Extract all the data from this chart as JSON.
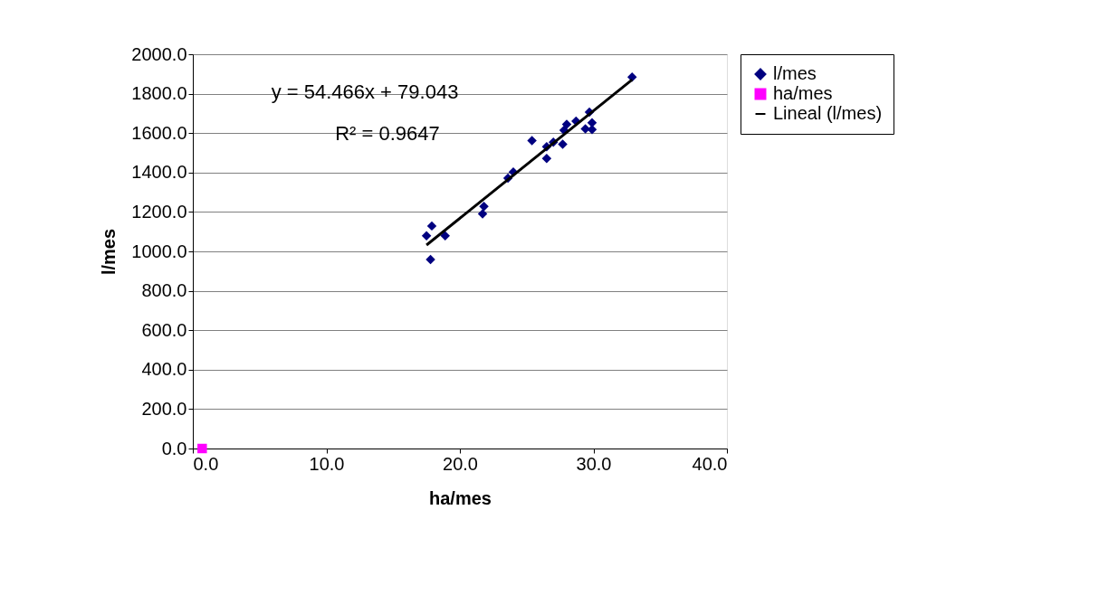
{
  "chart_data": {
    "type": "scatter",
    "xlabel": "ha/mes",
    "ylabel": "l/mes",
    "xlim": [
      0,
      40
    ],
    "ylim": [
      0,
      2000
    ],
    "xticks": [
      {
        "value": 0,
        "label": "0.0"
      },
      {
        "value": 10,
        "label": "10.0"
      },
      {
        "value": 20,
        "label": "20.0"
      },
      {
        "value": 30,
        "label": "30.0"
      },
      {
        "value": 40,
        "label": "40.0"
      }
    ],
    "yticks": [
      {
        "value": 0,
        "label": "0.0"
      },
      {
        "value": 200,
        "label": "200.0"
      },
      {
        "value": 400,
        "label": "400.0"
      },
      {
        "value": 600,
        "label": "600.0"
      },
      {
        "value": 800,
        "label": "800.0"
      },
      {
        "value": 1000,
        "label": "1000.0"
      },
      {
        "value": 1200,
        "label": "1200.0"
      },
      {
        "value": 1400,
        "label": "1400.0"
      },
      {
        "value": 1600,
        "label": "1600.0"
      },
      {
        "value": 1800,
        "label": "1800.0"
      },
      {
        "value": 2000,
        "label": "2000.0"
      }
    ],
    "grid": "y",
    "legend": "right",
    "annotations": [
      "y = 54.466x + 79.043",
      "R² = 0.9647"
    ],
    "series": [
      {
        "name": "l/mes",
        "marker": "diamond",
        "color": "#000080",
        "x": [
          17.5,
          17.9,
          17.8,
          18.9,
          21.8,
          21.7,
          23.6,
          24.0,
          25.4,
          26.5,
          26.5,
          27.0,
          27.7,
          27.8,
          28.0,
          28.7,
          29.4,
          29.7,
          29.9,
          29.9,
          32.9
        ],
        "values": [
          1079,
          1129,
          959,
          1079,
          1228,
          1190,
          1372,
          1402,
          1562,
          1471,
          1531,
          1554,
          1544,
          1615,
          1645,
          1661,
          1622,
          1706,
          1653,
          1618,
          1884
        ]
      },
      {
        "name": "ha/mes",
        "marker": "square",
        "color": "#ff00ff",
        "x": [
          0.7
        ],
        "values": [
          0
        ]
      },
      {
        "name": "Lineal (l/mes)",
        "type": "line",
        "color": "#000000",
        "x": [
          17.5,
          32.9
        ],
        "line_style": "solid",
        "values": [
          1032,
          1871
        ]
      }
    ]
  }
}
